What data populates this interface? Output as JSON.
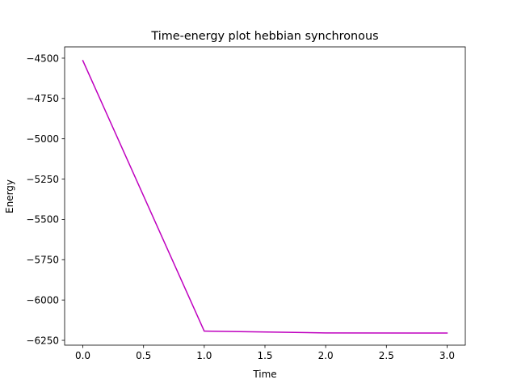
{
  "chart_data": {
    "type": "line",
    "title": "Time-energy plot hebbian synchronous",
    "xlabel": "Time",
    "ylabel": "Energy",
    "xlim": [
      -0.15,
      3.15
    ],
    "ylim": [
      -6280,
      -4430
    ],
    "x_ticks": [
      0.0,
      0.5,
      1.0,
      1.5,
      2.0,
      2.5,
      3.0
    ],
    "x_tick_labels": [
      "0.0",
      "0.5",
      "1.0",
      "1.5",
      "2.0",
      "2.5",
      "3.0"
    ],
    "y_ticks": [
      -4500,
      -4750,
      -5000,
      -5250,
      -5500,
      -5750,
      -6000,
      -6250
    ],
    "y_tick_labels": [
      "−4500",
      "−4750",
      "−5000",
      "−5250",
      "−5500",
      "−5750",
      "−6000",
      "−6250"
    ],
    "grid": false,
    "legend": "none",
    "series": [
      {
        "color": "#bf00bf",
        "x": [
          0,
          1,
          2,
          3
        ],
        "y": [
          -4515,
          -6193,
          -6204,
          -6205
        ]
      }
    ]
  }
}
